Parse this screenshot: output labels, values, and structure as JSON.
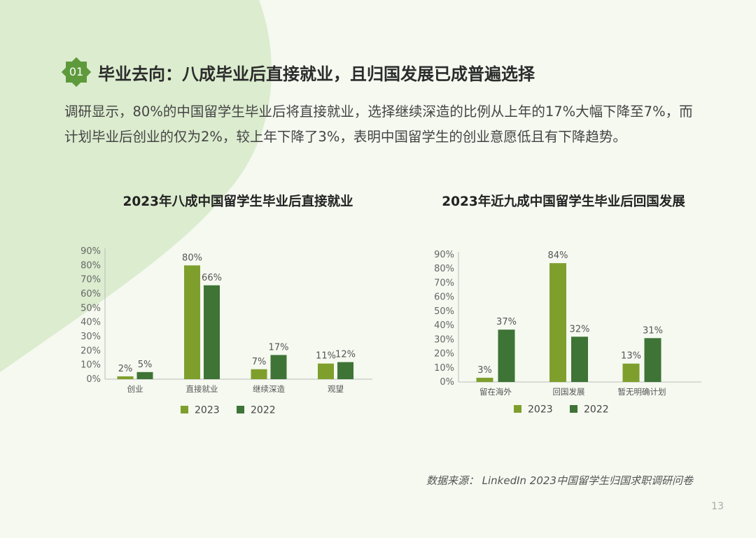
{
  "section": {
    "badge": "01",
    "title": "毕业去向：八成毕业后直接就业，且归国发展已成普遍选择"
  },
  "intro": "调研显示，80%的中国留学生毕业后将直接就业，选择继续深造的比例从上年的17%大幅下降至7%，而计划毕业后创业的仅为2%，较上年下降了3%，表明中国留学生的创业意愿低且有下降趋势。",
  "colors": {
    "series_2023": "#7f9f2d",
    "series_2022": "#3e7436",
    "background": "#f5f9f0",
    "blob": "#dceccf",
    "badge": "#5e9a3c"
  },
  "chart_data": [
    {
      "type": "bar",
      "title": "2023年八成中国留学生毕业后直接就业",
      "categories": [
        "创业",
        "直接就业",
        "继续深造",
        "观望"
      ],
      "series": [
        {
          "name": "2023",
          "values": [
            2,
            80,
            7,
            11
          ],
          "labels": [
            "2%",
            "80%",
            "7%",
            "11%"
          ]
        },
        {
          "name": "2022",
          "values": [
            5,
            66,
            17,
            12
          ],
          "labels": [
            "5%",
            "66%",
            "17%",
            "12%"
          ]
        }
      ],
      "ylim": [
        0,
        90
      ],
      "yticks": [
        "0%",
        "10%",
        "20%",
        "30%",
        "40%",
        "50%",
        "60%",
        "70%",
        "80%",
        "90%"
      ],
      "legend": "bottom",
      "grid": false
    },
    {
      "type": "bar",
      "title": "2023年近九成中国留学生毕业后回国发展",
      "categories": [
        "留在海外",
        "回国发展",
        "暂无明确计划"
      ],
      "series": [
        {
          "name": "2023",
          "values": [
            3,
            84,
            13
          ],
          "labels": [
            "3%",
            "84%",
            "13%"
          ]
        },
        {
          "name": "2022",
          "values": [
            37,
            32,
            31
          ],
          "labels": [
            "37%",
            "32%",
            "31%"
          ]
        }
      ],
      "ylim": [
        0,
        90
      ],
      "yticks": [
        "0%",
        "10%",
        "20%",
        "30%",
        "40%",
        "50%",
        "60%",
        "70%",
        "80%",
        "90%"
      ],
      "legend": "bottom",
      "grid": false
    }
  ],
  "source": "数据来源： LinkedIn 2023中国留学生归国求职调研问卷",
  "page_number": "13"
}
